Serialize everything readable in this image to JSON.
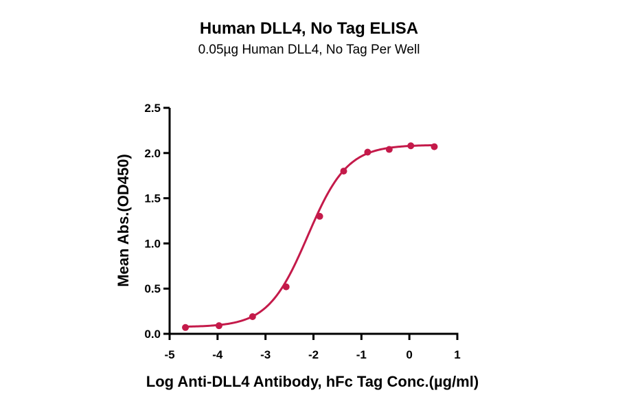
{
  "chart_data": {
    "type": "scatter",
    "title": "Human DLL4, No Tag ELISA",
    "subtitle": "0.05µg Human DLL4, No Tag Per Well",
    "xlabel": "Log Anti-DLL4 Antibody, hFc Tag Conc.(µg/ml)",
    "ylabel": "Mean Abs.(OD450)",
    "xlim": [
      -5,
      1
    ],
    "ylim": [
      0,
      2.5
    ],
    "xticks": [
      -5,
      -4,
      -3,
      -2,
      -1,
      0,
      1
    ],
    "xtick_labels": [
      "-5",
      "-4",
      "-3",
      "-2",
      "-1",
      "0",
      "1"
    ],
    "yticks": [
      0,
      0.5,
      1.0,
      1.5,
      2.0,
      2.5
    ],
    "ytick_labels": [
      "0.0",
      "0.5",
      "1.0",
      "1.5",
      "2.0",
      "2.5"
    ],
    "grid": false,
    "series": [
      {
        "color": "#c41a4a",
        "x": [
          -4.67,
          -3.97,
          -3.27,
          -2.57,
          -1.87,
          -1.37,
          -0.87,
          -0.42,
          0.03,
          0.52
        ],
        "y": [
          0.07,
          0.09,
          0.19,
          0.52,
          1.3,
          1.8,
          2.01,
          2.04,
          2.08,
          2.07
        ],
        "fit": {
          "model": "4PL",
          "bottom": 0.075,
          "top": 2.09,
          "logEC50": -2.12,
          "hill": 1.05
        }
      }
    ]
  }
}
